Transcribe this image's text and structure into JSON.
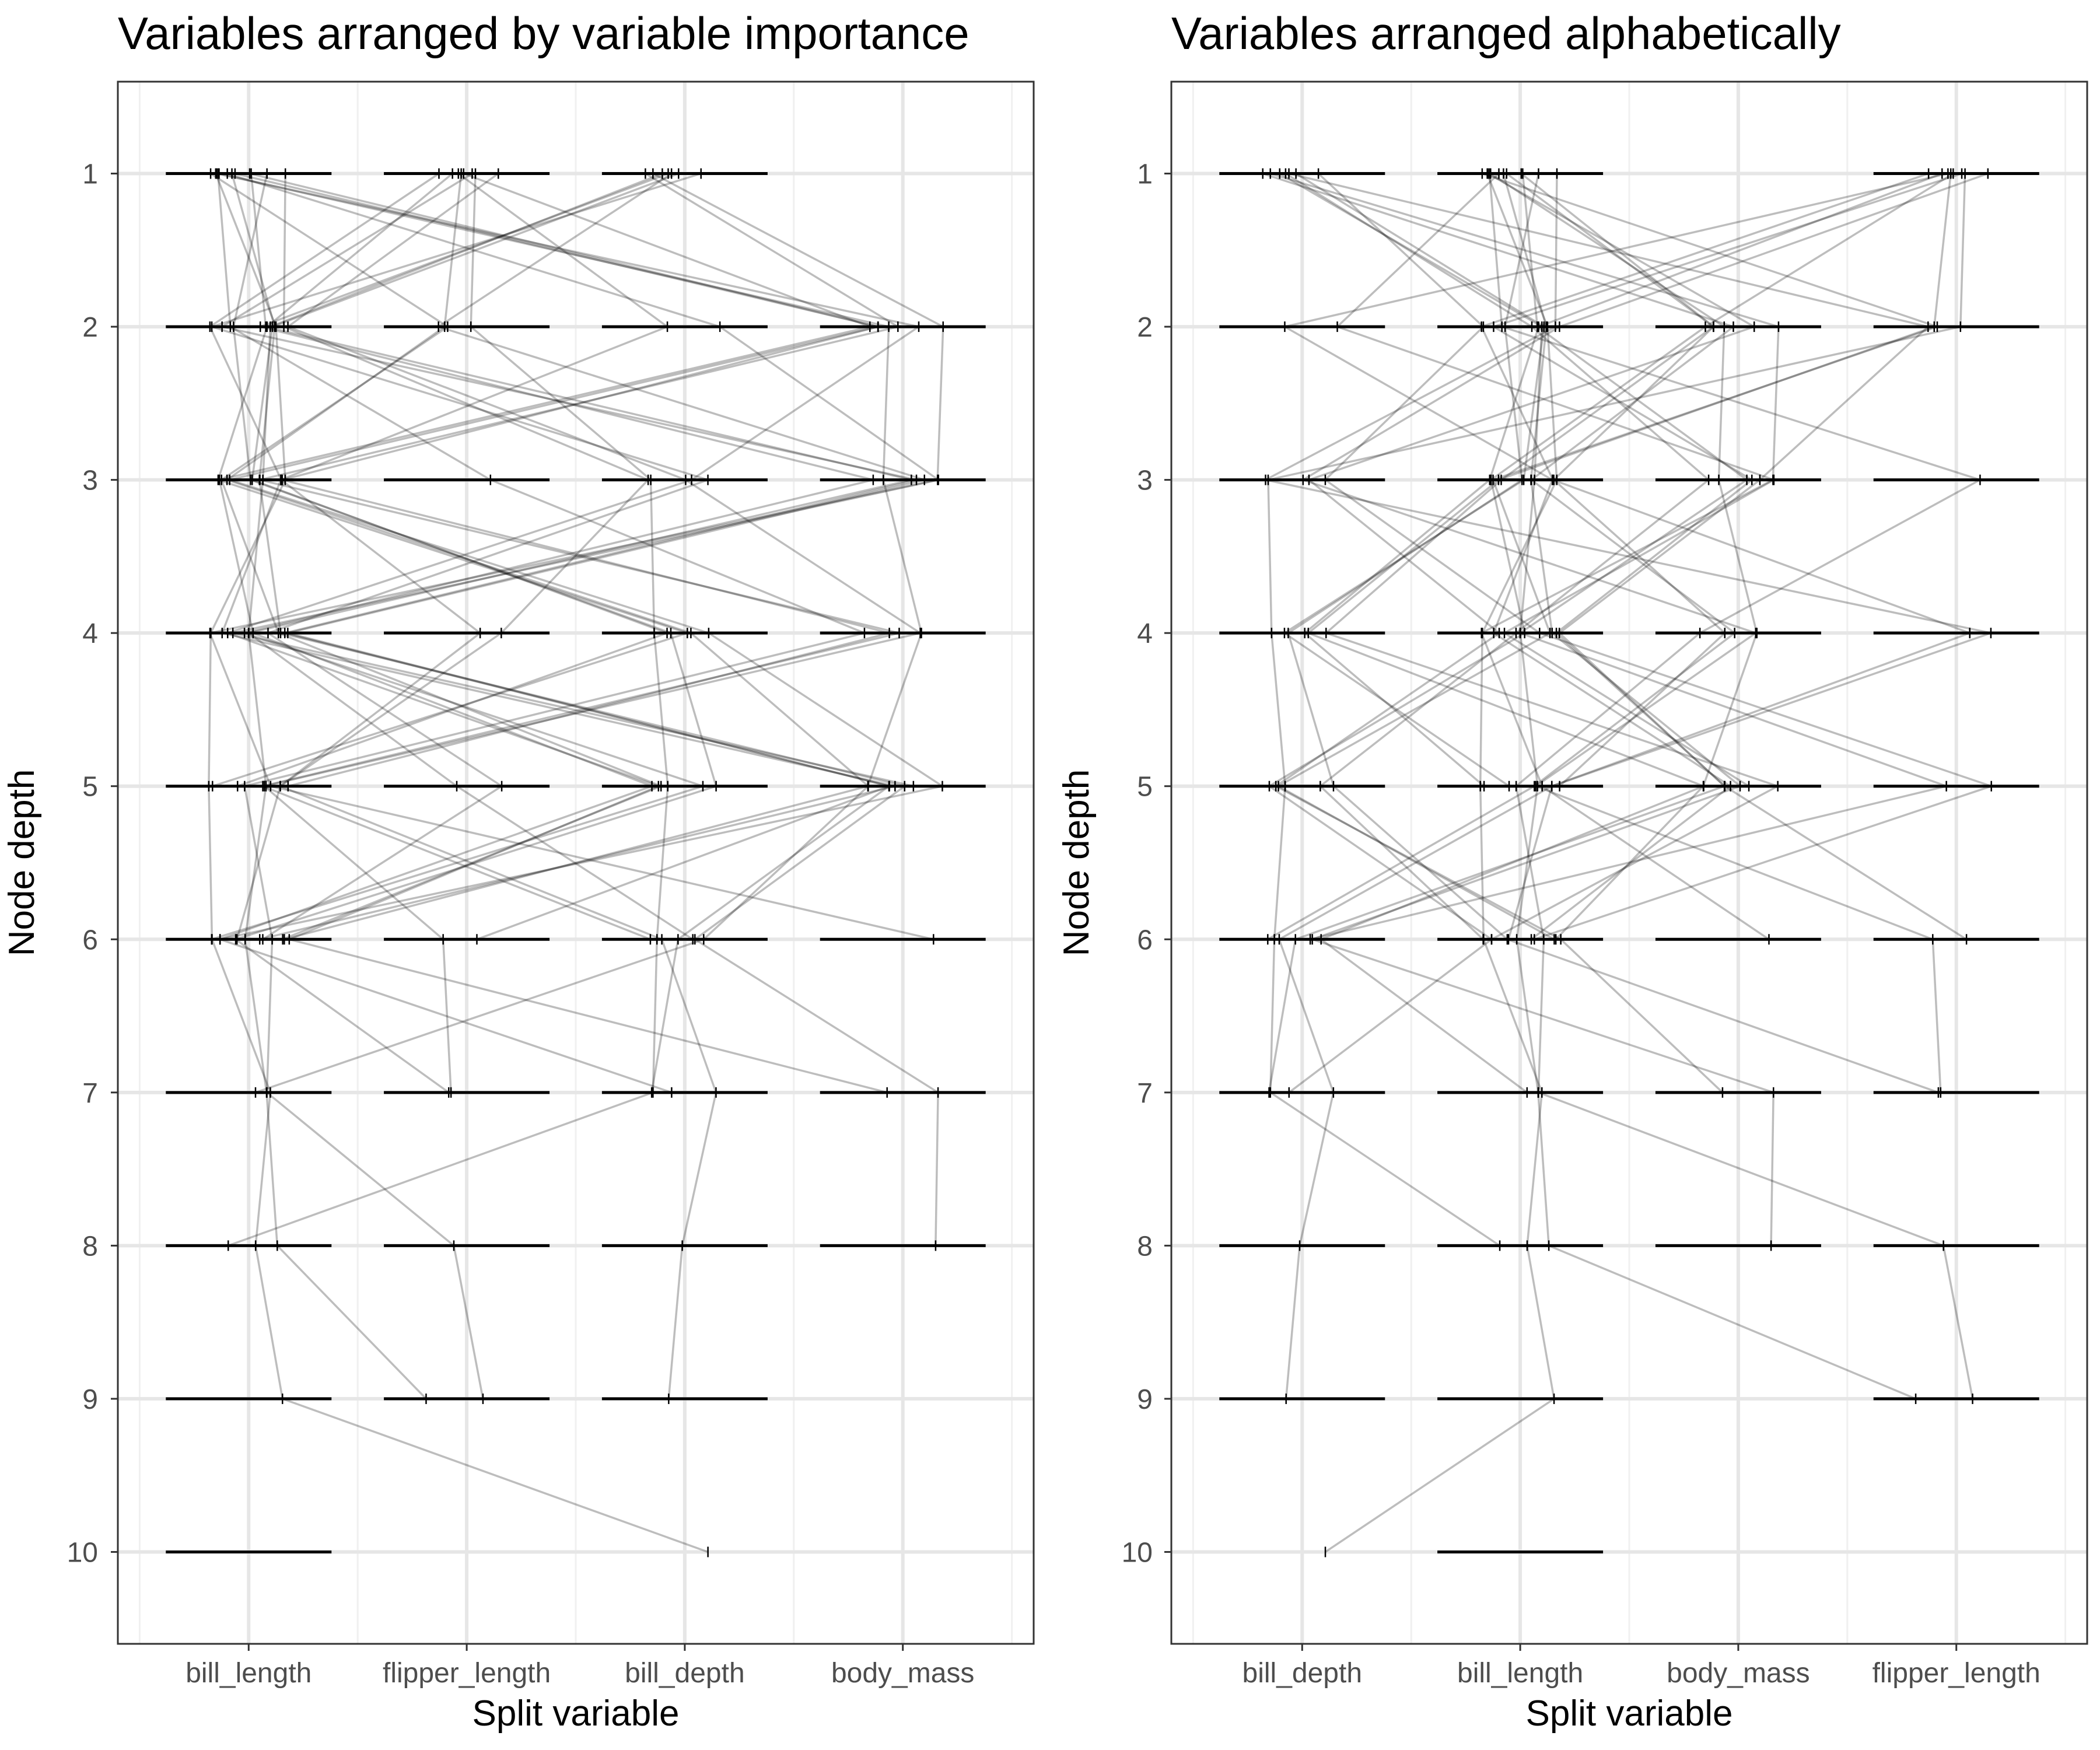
{
  "chart_data": [
    {
      "type": "line",
      "title": "Variables arranged by variable importance",
      "xlabel": "Split variable",
      "ylabel": "Node depth",
      "categories": [
        "bill_length",
        "flipper_length",
        "bill_depth",
        "body_mass"
      ],
      "y_ticks": [
        "1",
        "2",
        "3",
        "4",
        "5",
        "6",
        "7",
        "8",
        "9",
        "10"
      ],
      "ylim": [
        0.4,
        10.6
      ],
      "grid": true,
      "depth_rows": [
        {
          "variable": "bill_length",
          "depths": [
            1,
            2,
            3,
            4,
            5,
            6,
            7,
            8,
            9,
            10
          ]
        },
        {
          "variable": "flipper_length",
          "depths": [
            1,
            2,
            3,
            4,
            5,
            6,
            7,
            8,
            9
          ]
        },
        {
          "variable": "bill_depth",
          "depths": [
            1,
            2,
            3,
            4,
            5,
            6,
            7,
            8,
            9
          ]
        },
        {
          "variable": "body_mass",
          "depths": [
            2,
            3,
            4,
            5,
            6,
            7,
            8
          ]
        }
      ],
      "paths": [
        [
          "bill_length",
          "bill_length",
          "bill_length",
          "bill_length",
          "bill_length",
          "bill_length",
          "bill_length",
          "bill_length",
          "bill_length",
          "bill_depth"
        ],
        [
          "bill_length",
          "body_mass",
          "bill_length",
          "bill_depth",
          "body_mass",
          "bill_length",
          "bill_depth"
        ],
        [
          "bill_length",
          "flipper_length",
          "bill_length",
          "bill_length",
          "bill_depth",
          "bill_length"
        ],
        [
          "bill_length",
          "bill_depth",
          "body_mass",
          "bill_length",
          "body_mass"
        ],
        [
          "bill_length",
          "body_mass",
          "bill_length",
          "body_mass",
          "bill_length"
        ],
        [
          "bill_length",
          "bill_length",
          "bill_depth",
          "flipper_length",
          "bill_length",
          "bill_length"
        ],
        [
          "bill_length",
          "body_mass",
          "bill_depth",
          "bill_length",
          "bill_depth",
          "bill_length",
          "body_mass"
        ],
        [
          "bill_length",
          "bill_length",
          "body_mass",
          "bill_length",
          "flipper_length",
          "bill_depth"
        ],
        [
          "flipper_length",
          "bill_length",
          "bill_length",
          "bill_depth",
          "bill_length"
        ],
        [
          "flipper_length",
          "bill_length",
          "body_mass",
          "bill_length",
          "body_mass",
          "flipper_length"
        ],
        [
          "flipper_length",
          "body_mass",
          "bill_length",
          "bill_length",
          "bill_depth",
          "bill_length"
        ],
        [
          "flipper_length",
          "flipper_length",
          "bill_length",
          "bill_depth",
          "body_mass",
          "bill_depth",
          "bill_length"
        ],
        [
          "flipper_length",
          "bill_depth",
          "bill_length",
          "bill_length",
          "body_mass",
          "bill_length"
        ],
        [
          "flipper_length",
          "bill_length",
          "bill_depth",
          "body_mass",
          "bill_length",
          "flipper_length",
          "flipper_length"
        ],
        [
          "bill_depth",
          "bill_length",
          "bill_length",
          "bill_depth",
          "bill_length"
        ],
        [
          "bill_depth",
          "bill_length",
          "body_mass",
          "bill_length",
          "bill_depth",
          "bill_length"
        ],
        [
          "bill_depth",
          "body_mass",
          "bill_length",
          "body_mass",
          "bill_length",
          "bill_depth"
        ],
        [
          "bill_depth",
          "bill_length",
          "bill_depth",
          "bill_length",
          "flipper_length",
          "bill_length"
        ],
        [
          "bill_depth",
          "flipper_length",
          "body_mass",
          "bill_length",
          "body_mass",
          "bill_depth",
          "bill_depth"
        ],
        [
          "bill_length",
          "bill_length",
          "flipper_length",
          "body_mass",
          "bill_length",
          "bill_length",
          "bill_length",
          "flipper_length",
          "flipper_length"
        ],
        [
          "flipper_length",
          "bill_length",
          "bill_length",
          "flipper_length",
          "bill_length",
          "bill_depth",
          "bill_depth",
          "bill_depth",
          "bill_depth"
        ],
        [
          "bill_length",
          "bill_length",
          "bill_length",
          "bill_length",
          "body_mass",
          "bill_depth",
          "body_mass",
          "body_mass"
        ],
        [
          "bill_depth",
          "bill_length",
          "bill_length",
          "bill_length",
          "bill_length",
          "bill_length",
          "bill_length",
          "bill_length",
          "flipper_length"
        ],
        [
          "bill_length",
          "body_mass",
          "body_mass",
          "body_mass",
          "body_mass",
          "bill_length"
        ],
        [
          "flipper_length",
          "flipper_length",
          "bill_depth",
          "bill_depth",
          "bill_depth",
          "bill_depth",
          "bill_depth",
          "bill_length"
        ],
        [
          "bill_length",
          "bill_length",
          "bill_length",
          "bill_depth",
          "bill_depth",
          "bill_length",
          "flipper_length"
        ],
        [
          "bill_depth",
          "body_mass",
          "body_mass",
          "bill_length",
          "bill_length",
          "body_mass"
        ]
      ]
    },
    {
      "type": "line",
      "title": "Variables arranged alphabetically",
      "xlabel": "Split variable",
      "ylabel": "Node depth",
      "categories": [
        "bill_depth",
        "bill_length",
        "body_mass",
        "flipper_length"
      ],
      "y_ticks": [
        "1",
        "2",
        "3",
        "4",
        "5",
        "6",
        "7",
        "8",
        "9",
        "10"
      ],
      "ylim": [
        0.4,
        10.6
      ],
      "grid": true,
      "depth_rows": [
        {
          "variable": "bill_depth",
          "depths": [
            1,
            2,
            3,
            4,
            5,
            6,
            7,
            8,
            9
          ]
        },
        {
          "variable": "bill_length",
          "depths": [
            1,
            2,
            3,
            4,
            5,
            6,
            7,
            8,
            9,
            10
          ]
        },
        {
          "variable": "body_mass",
          "depths": [
            2,
            3,
            4,
            5,
            6,
            7,
            8
          ]
        },
        {
          "variable": "flipper_length",
          "depths": [
            1,
            2,
            3,
            4,
            5,
            6,
            7,
            8,
            9
          ]
        }
      ]
    }
  ]
}
